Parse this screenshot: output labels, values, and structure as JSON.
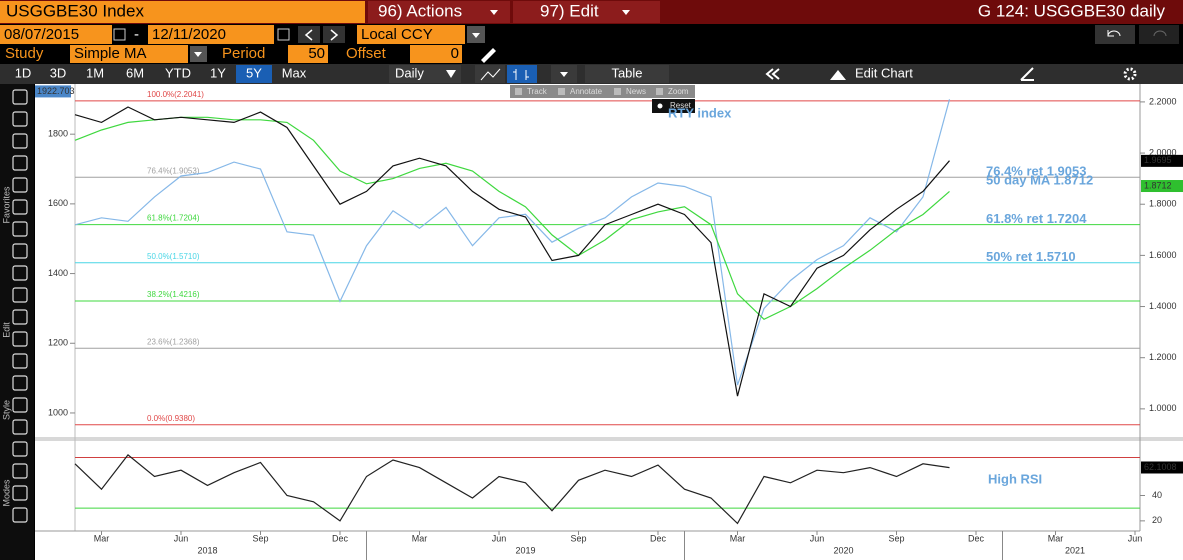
{
  "header": {
    "ticker": "USGGBE30 Index",
    "actions": "96) Actions",
    "edit": "97) Edit",
    "title": "G 124: USGGBE30 daily"
  },
  "controls": {
    "start_date": "08/07/2015",
    "date_separator": "-",
    "end_date": "12/11/2020",
    "currency": "Local CCY",
    "study_label": "Study",
    "study": "Simple MA",
    "period_label": "Period",
    "period": 50,
    "offset_label": "Offset",
    "offset": 0
  },
  "periods": [
    "1D",
    "3D",
    "1M",
    "6M",
    "YTD",
    "1Y",
    "5Y",
    "Max"
  ],
  "frequency": "Daily",
  "table": "Table",
  "edit_chart": "Edit Chart",
  "chart_tools": [
    "Track",
    "Annotate",
    "News",
    "Zoom"
  ],
  "reset": "Reset",
  "side_labels": [
    "Favorites",
    "Edit",
    "Style",
    "Modes"
  ],
  "chart_data": [
    {
      "type": "line",
      "x": [
        "2018-02",
        "2018-03",
        "2018-04",
        "2018-05",
        "2018-06",
        "2018-07",
        "2018-08",
        "2018-09",
        "2018-10",
        "2018-11",
        "2018-12",
        "2019-01",
        "2019-02",
        "2019-03",
        "2019-04",
        "2019-05",
        "2019-06",
        "2019-07",
        "2019-08",
        "2019-09",
        "2019-10",
        "2019-11",
        "2019-12",
        "2020-01",
        "2020-02",
        "2020-03",
        "2020-04",
        "2020-05",
        "2020-06",
        "2020-07",
        "2020-08",
        "2020-09",
        "2020-10",
        "2020-11"
      ],
      "xlim": [
        "2018-02",
        "2021-06"
      ],
      "ylim": [
        931,
        1944
      ],
      "yticks": [
        1000,
        1200,
        1400,
        1600,
        1800
      ],
      "y2lim": [
        0.89,
        2.27
      ],
      "y2ticks": [
        {
          "value": 1,
          "label": "1.0000"
        },
        {
          "value": 1.2,
          "label": "1.2000"
        },
        {
          "value": 1.4,
          "label": "1.4000"
        },
        {
          "value": 1.6,
          "label": "1.6000"
        },
        {
          "value": 1.8,
          "label": "1.8000"
        },
        {
          "value": 2,
          "label": "2.0000"
        },
        {
          "value": 2.2,
          "label": "2.2000"
        }
      ],
      "series": [
        {
          "name": "RTY index",
          "color": "#86b8e8",
          "axis": "y",
          "values": [
            1540,
            1560,
            1550,
            1620,
            1680,
            1690,
            1720,
            1700,
            1520,
            1510,
            1320,
            1480,
            1580,
            1530,
            1590,
            1480,
            1560,
            1570,
            1490,
            1530,
            1560,
            1620,
            1660,
            1650,
            1620,
            1080,
            1300,
            1380,
            1440,
            1480,
            1560,
            1520,
            1620,
            1900
          ]
        },
        {
          "color": "#3fd83f",
          "axis": "y2",
          "values": [
            2.05,
            2.09,
            2.12,
            2.13,
            2.14,
            2.14,
            2.13,
            2.13,
            2.12,
            2.05,
            1.93,
            1.88,
            1.9,
            1.94,
            1.96,
            1.93,
            1.85,
            1.79,
            1.68,
            1.6,
            1.66,
            1.74,
            1.77,
            1.79,
            1.72,
            1.45,
            1.35,
            1.4,
            1.47,
            1.55,
            1.62,
            1.7,
            1.76,
            1.85
          ]
        },
        {
          "color": "#111111",
          "axis": "y2",
          "values": [
            2.15,
            2.12,
            2.18,
            2.13,
            2.14,
            2.13,
            2.12,
            2.16,
            2.1,
            1.95,
            1.8,
            1.85,
            1.95,
            1.98,
            1.95,
            1.85,
            1.78,
            1.75,
            1.58,
            1.6,
            1.72,
            1.76,
            1.8,
            1.76,
            1.65,
            1.05,
            1.45,
            1.4,
            1.55,
            1.6,
            1.7,
            1.78,
            1.85,
            1.97
          ]
        }
      ],
      "fib_levels": [
        {
          "label": "100.0%(2.2041)",
          "value": 2.2041,
          "color": "#e04848"
        },
        {
          "label": "76.4%(1.9053)",
          "value": 1.9053,
          "color": "#a0a0a0"
        },
        {
          "label": "61.8%(1.7204)",
          "value": 1.7204,
          "color": "#3fd83f"
        },
        {
          "label": "50.0%(1.5710)",
          "value": 1.571,
          "color": "#49d6e6"
        },
        {
          "label": "38.2%(1.4216)",
          "value": 1.4216,
          "color": "#3fd83f"
        },
        {
          "label": "23.6%(1.2368)",
          "value": 1.2368,
          "color": "#a0a0a0"
        },
        {
          "label": "0.0%(0.9380)",
          "value": 0.938,
          "color": "#e04848"
        }
      ],
      "annotations": [
        {
          "text": "76.4% ret 1.9053",
          "value": 1.9053
        },
        {
          "text": "50 day MA 1.8712",
          "value": 1.8712
        },
        {
          "text": "61.8% ret 1.7204",
          "value": 1.7204
        },
        {
          "text": "50% ret 1.5710",
          "value": 1.571
        }
      ],
      "last_labels": [
        {
          "label": "1922.703",
          "value": 1922.703,
          "axis": "y",
          "color": "#4a86c8"
        },
        {
          "label": "1.9695",
          "value": 1.9695,
          "axis": "y2",
          "color": "#000000"
        },
        {
          "label": "1.8712",
          "value": 1.8712,
          "axis": "y2",
          "color": "#2fbf2f"
        }
      ]
    },
    {
      "type": "line",
      "x": [
        "2018-02",
        "2018-03",
        "2018-04",
        "2018-05",
        "2018-06",
        "2018-07",
        "2018-08",
        "2018-09",
        "2018-10",
        "2018-11",
        "2018-12",
        "2019-01",
        "2019-02",
        "2019-03",
        "2019-04",
        "2019-05",
        "2019-06",
        "2019-07",
        "2019-08",
        "2019-09",
        "2019-10",
        "2019-11",
        "2019-12",
        "2020-01",
        "2020-02",
        "2020-03",
        "2020-04",
        "2020-05",
        "2020-06",
        "2020-07",
        "2020-08",
        "2020-09",
        "2020-10",
        "2020-11"
      ],
      "xlim": [
        "2018-02",
        "2021-06"
      ],
      "ylim": [
        12,
        83
      ],
      "yticks": [
        20,
        40
      ],
      "series": [
        {
          "color": "#222222",
          "values": [
            65,
            45,
            72,
            55,
            60,
            48,
            58,
            66,
            40,
            35,
            20,
            55,
            68,
            62,
            50,
            38,
            55,
            50,
            28,
            52,
            60,
            55,
            64,
            45,
            38,
            18,
            55,
            50,
            60,
            58,
            62,
            55,
            65,
            62
          ]
        }
      ],
      "levels": [
        {
          "value": 70,
          "color": "#d04040"
        },
        {
          "value": 30,
          "color": "#3fd83f"
        }
      ],
      "annotation": "High RSI",
      "last_labels": [
        {
          "label": "62.1008",
          "value": 62.1008,
          "color": "#000000"
        }
      ],
      "xticks": [
        {
          "value": "2018-03",
          "label": "Mar"
        },
        {
          "value": "2018-06",
          "label": "Jun"
        },
        {
          "value": "2018-09",
          "label": "Sep"
        },
        {
          "value": "2018-12",
          "label": "Dec"
        },
        {
          "value": "2019-03",
          "label": "Mar"
        },
        {
          "value": "2019-06",
          "label": "Jun"
        },
        {
          "value": "2019-09",
          "label": "Sep"
        },
        {
          "value": "2019-12",
          "label": "Dec"
        },
        {
          "value": "2020-03",
          "label": "Mar"
        },
        {
          "value": "2020-06",
          "label": "Jun"
        },
        {
          "value": "2020-09",
          "label": "Sep"
        },
        {
          "value": "2020-12",
          "label": "Dec"
        },
        {
          "value": "2021-03",
          "label": "Mar"
        },
        {
          "value": "2021-06",
          "label": "Jun"
        }
      ],
      "year_labels": [
        "2018",
        "2019",
        "2020",
        "2021"
      ]
    }
  ]
}
